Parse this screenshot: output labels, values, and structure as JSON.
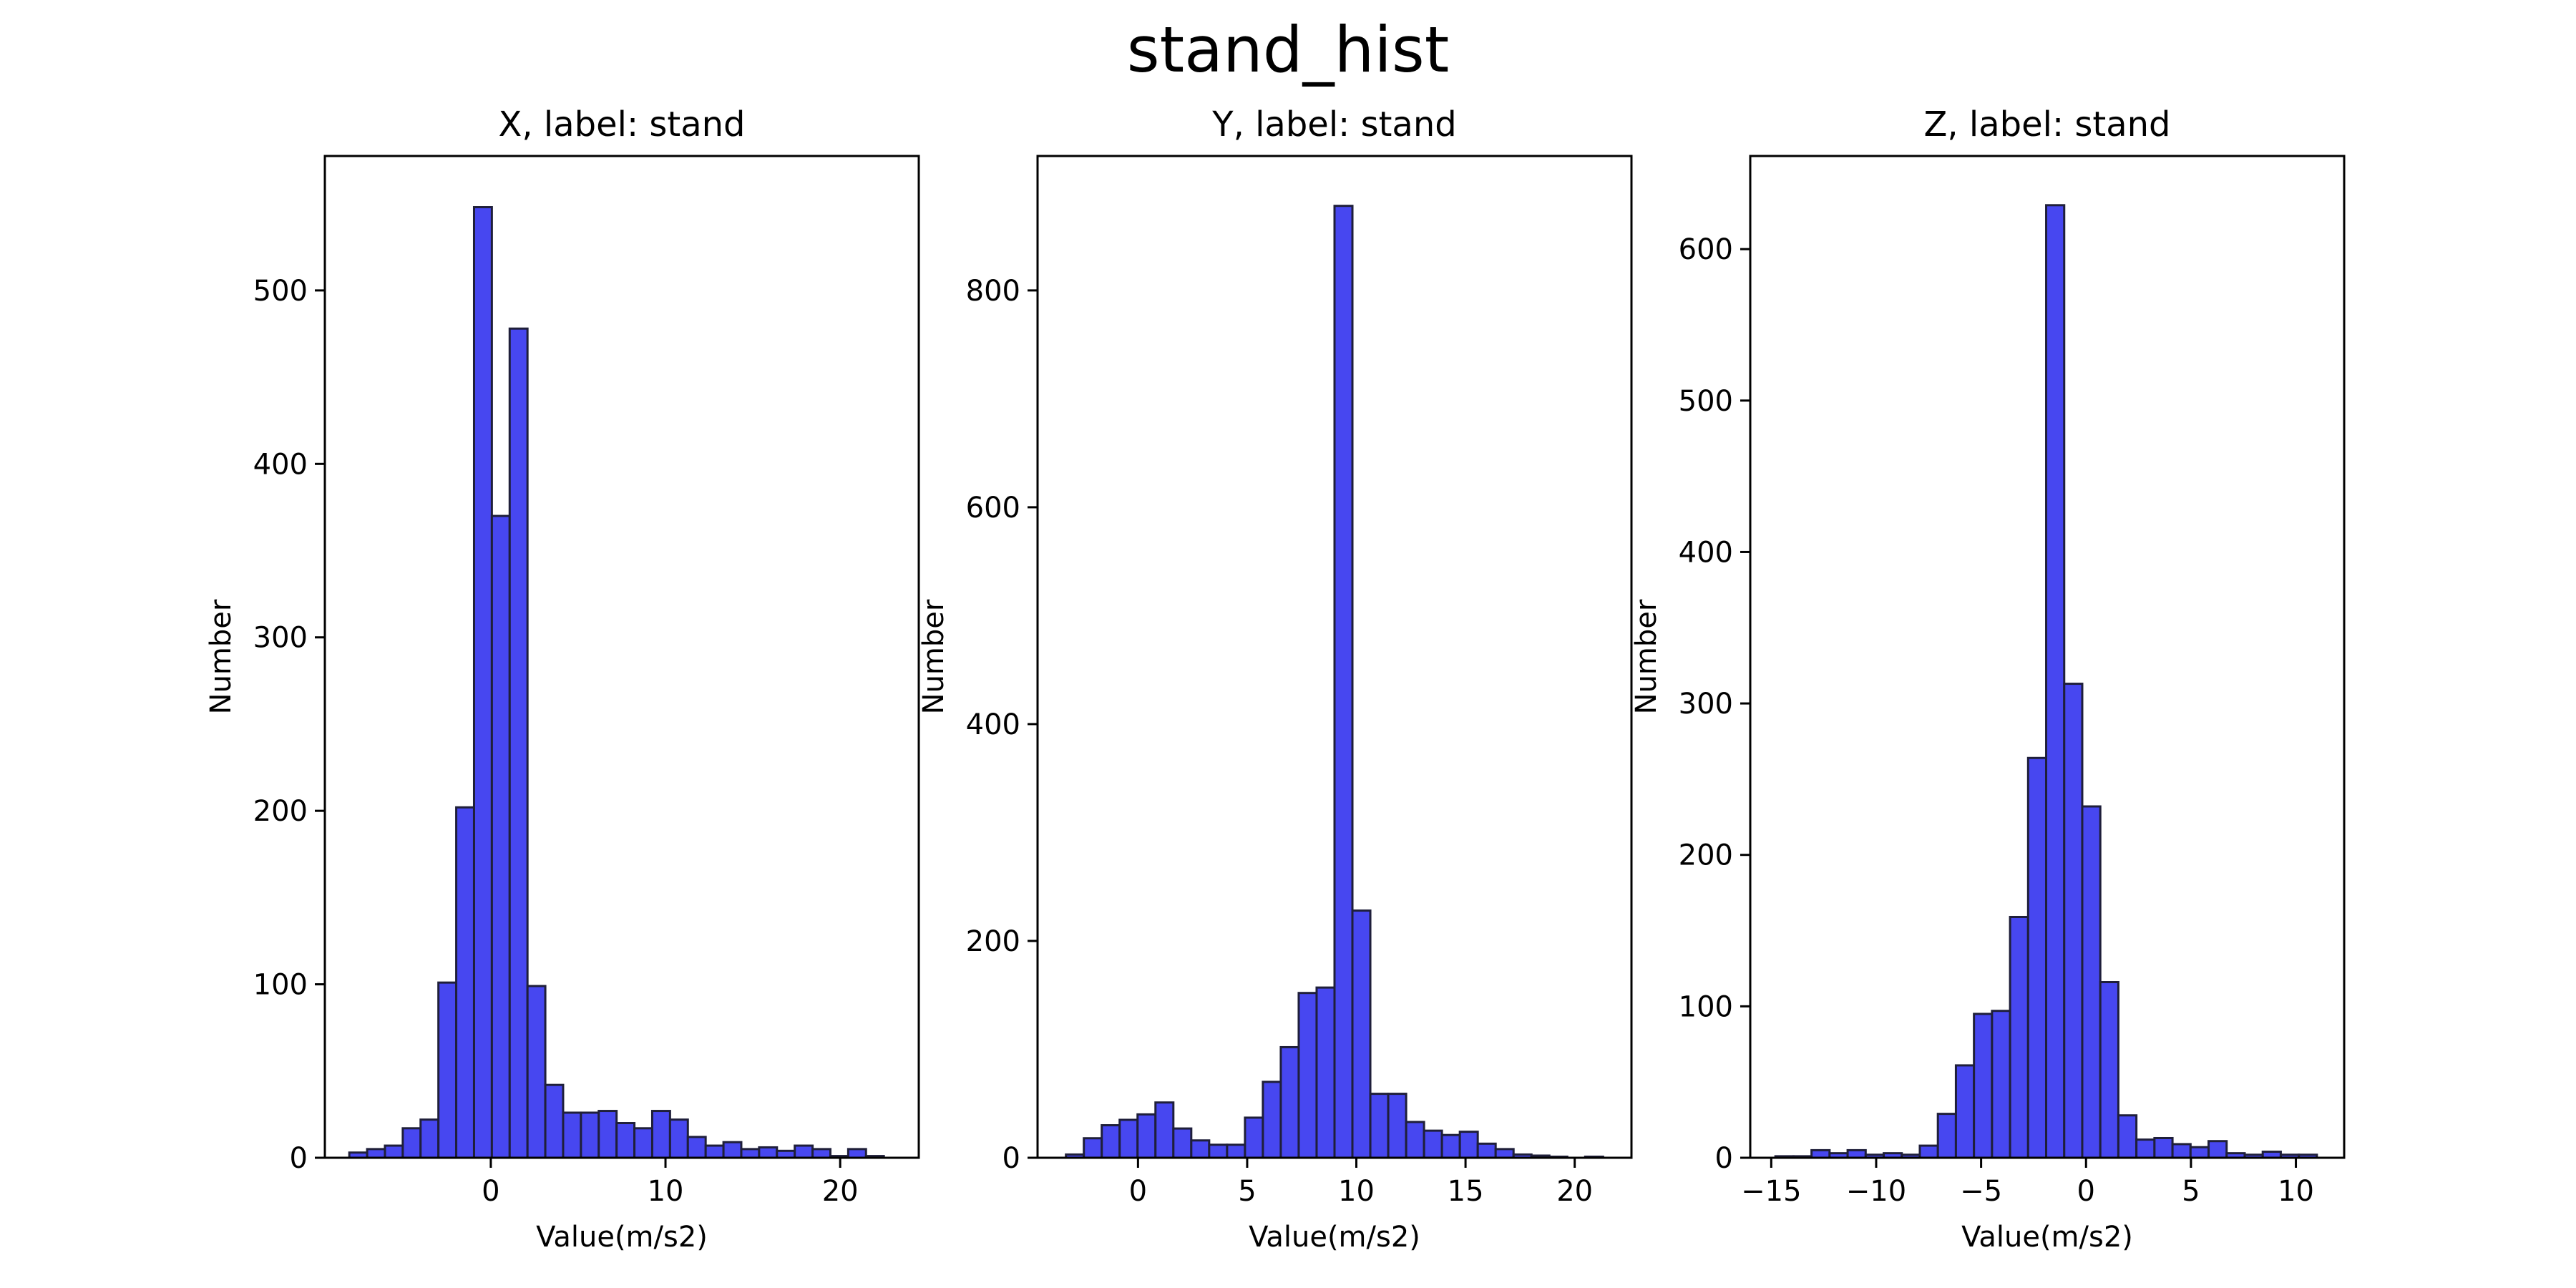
{
  "figure": {
    "suptitle": "stand_hist",
    "bar_color": "#4747f0",
    "edge_color": "#1f1f3a"
  },
  "chart_data": [
    {
      "type": "bar",
      "title": "X, label: stand",
      "xlabel": "Value(m/s2)",
      "ylabel": "Number",
      "xlim": [
        -9.5,
        24.5
      ],
      "ylim": [
        0,
        550
      ],
      "xticks": [
        0,
        10,
        20
      ],
      "yticks": [
        0,
        100,
        200,
        300,
        400,
        500
      ],
      "bin_start": -8.1,
      "bin_width": 1.02,
      "values": [
        3,
        5,
        7,
        17,
        22,
        101,
        202,
        548,
        370,
        478,
        99,
        42,
        26,
        26,
        27,
        20,
        17,
        27,
        22,
        12,
        7,
        9,
        5,
        6,
        4,
        7,
        5,
        1,
        5,
        1
      ],
      "grid": false
    },
    {
      "type": "bar",
      "title": "Y, label: stand",
      "xlabel": "Value(m/s2)",
      "ylabel": "Number",
      "xlim": [
        -4.6,
        22.6
      ],
      "ylim": [
        0,
        880
      ],
      "xticks": [
        0,
        5,
        10,
        15,
        20
      ],
      "yticks": [
        0,
        200,
        400,
        600,
        800
      ],
      "bin_start": -3.3,
      "bin_width": 0.82,
      "values": [
        3,
        18,
        30,
        35,
        40,
        51,
        27,
        16,
        12,
        12,
        37,
        70,
        102,
        152,
        157,
        878,
        228,
        59,
        59,
        33,
        25,
        21,
        24,
        13,
        8,
        3,
        2,
        1,
        0,
        1
      ],
      "grid": false
    },
    {
      "type": "bar",
      "title": "Z, label: stand",
      "xlabel": "Value(m/s2)",
      "ylabel": "Number",
      "xlim": [
        -16.0,
        12.3
      ],
      "ylim": [
        0,
        630
      ],
      "xticks": [
        -15,
        -10,
        -5,
        0,
        5,
        10
      ],
      "yticks": [
        0,
        100,
        200,
        300,
        400,
        500,
        600
      ],
      "bin_start": -14.8,
      "bin_width": 0.86,
      "values": [
        1,
        1,
        5,
        3,
        5,
        2,
        3,
        2,
        8,
        29,
        61,
        95,
        97,
        159,
        264,
        629,
        313,
        232,
        116,
        28,
        12,
        13,
        9,
        7,
        11,
        3,
        2,
        4,
        2,
        2
      ],
      "grid": false
    }
  ]
}
